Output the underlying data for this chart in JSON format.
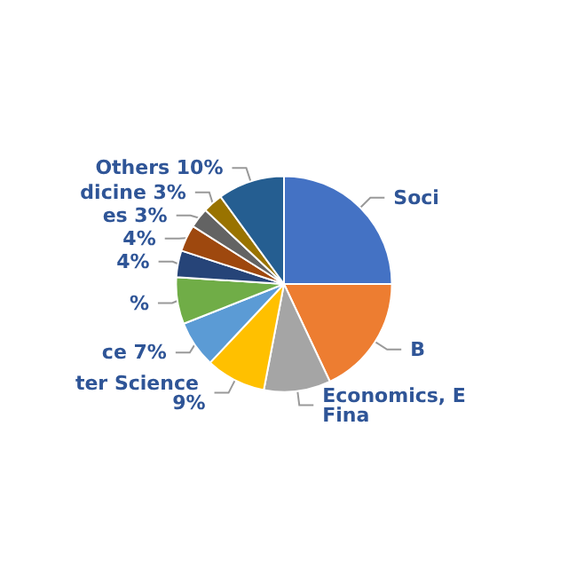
{
  "chart_data": {
    "type": "pie",
    "categories": [
      "Soci",
      "B",
      "Economics, E Fina",
      "ter Science",
      "ce",
      null,
      null,
      null,
      "es",
      "dicine",
      "Others"
    ],
    "values": [
      25,
      18,
      10,
      9,
      7,
      7,
      4,
      4,
      3,
      3,
      10
    ],
    "value_labels": [
      null,
      null,
      null,
      "9%",
      "7%",
      "%",
      "4%",
      "4%",
      "3%",
      "3%",
      "10%"
    ],
    "colors": [
      "#4472c4",
      "#ed7d31",
      "#a5a5a5",
      "#ffc000",
      "#5b9bd5",
      "#70ad47",
      "#264478",
      "#9e480e",
      "#636363",
      "#997300",
      "#255e91"
    ]
  }
}
